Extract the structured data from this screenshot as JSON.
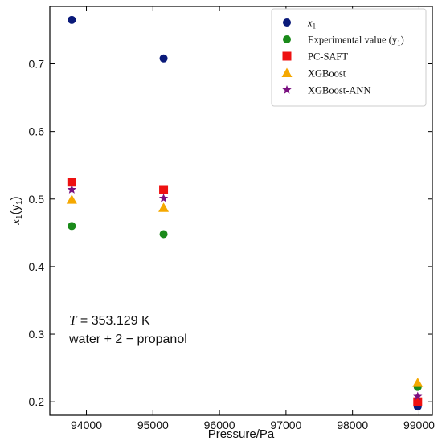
{
  "chart_data": {
    "type": "scatter",
    "xlabel": "Pressure/Pa",
    "ylabel_main": "x",
    "ylabel_sub1": "1",
    "ylabel_open": "(y",
    "ylabel_sub2": "1",
    "ylabel_close": ")",
    "xlim": [
      93450,
      99200
    ],
    "ylim": [
      0.18,
      0.785
    ],
    "xticks": [
      94000,
      95000,
      96000,
      97000,
      98000,
      99000
    ],
    "yticks": [
      0.2,
      0.3,
      0.4,
      0.5,
      0.6,
      0.7
    ],
    "ytick_labels": [
      "0.2",
      "0.3",
      "0.4",
      "0.5",
      "0.6",
      "0.7"
    ],
    "grid": false,
    "legend_position": "top-right",
    "series": [
      {
        "name": "x1",
        "label_main": "x",
        "label_sub": "1",
        "marker": "circle",
        "color": "#0a1a7a",
        "x": [
          93780,
          95160,
          98980
        ],
        "y": [
          0.765,
          0.708,
          0.193
        ]
      },
      {
        "name": "Experimental value (y1)",
        "label_main": "Experimental value (y",
        "label_sub": "1",
        "label_end": ")",
        "marker": "circle",
        "color": "#1a8a1a",
        "x": [
          93780,
          95160,
          98980
        ],
        "y": [
          0.46,
          0.448,
          0.222
        ]
      },
      {
        "name": "PC-SAFT",
        "label_main": "PC-SAFT",
        "marker": "square",
        "color": "#ee1111",
        "x": [
          93780,
          95160,
          98980
        ],
        "y": [
          0.525,
          0.514,
          0.2
        ]
      },
      {
        "name": "XGBoost",
        "label_main": "XGBoost",
        "marker": "triangle",
        "color": "#f5a800",
        "x": [
          93780,
          95160,
          98980
        ],
        "y": [
          0.499,
          0.487,
          0.228
        ]
      },
      {
        "name": "XGBoost-ANN",
        "label_main": "XGBoost-ANN",
        "marker": "star",
        "color": "#7a1080",
        "x": [
          93780,
          95160,
          98980
        ],
        "y": [
          0.514,
          0.501,
          0.208
        ]
      }
    ],
    "annotations": {
      "temp_var": "T",
      "temp_value": " = 353.129 K",
      "system": "water + 2 − propanol"
    }
  }
}
